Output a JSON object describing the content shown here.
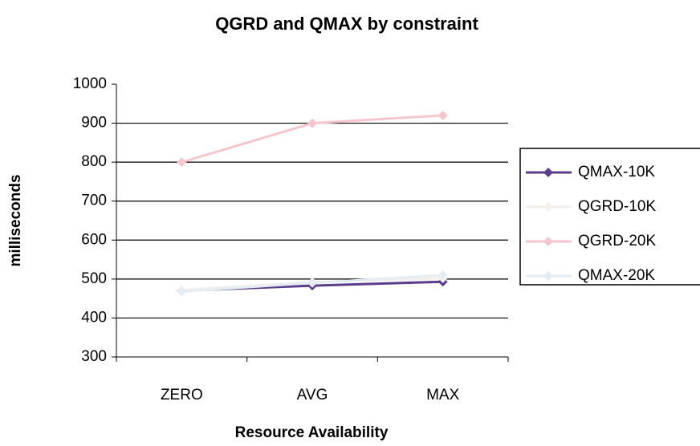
{
  "chart_data": {
    "type": "line",
    "title": "QGRD and QMAX by constraint",
    "x_label": "Resource Availability",
    "y_label": "milliseconds",
    "categories": [
      "ZERO",
      "AVG",
      "MAX"
    ],
    "series": [
      {
        "name": "QMAX-10K",
        "color": "#5b3b8c",
        "values": [
          470,
          483,
          493
        ]
      },
      {
        "name": "QGRD-10K",
        "color": "#f3efec",
        "values": [
          472,
          492,
          502
        ]
      },
      {
        "name": "QGRD-20K",
        "color": "#f6c6cf",
        "values": [
          800,
          900,
          920
        ]
      },
      {
        "name": "QMAX-20K",
        "color": "#e4edf3",
        "values": [
          468,
          490,
          510
        ]
      }
    ],
    "ylim": [
      300,
      1000
    ],
    "yticks": [
      300,
      400,
      500,
      600,
      700,
      800,
      900,
      1000
    ],
    "grid": true,
    "legend": "right"
  }
}
